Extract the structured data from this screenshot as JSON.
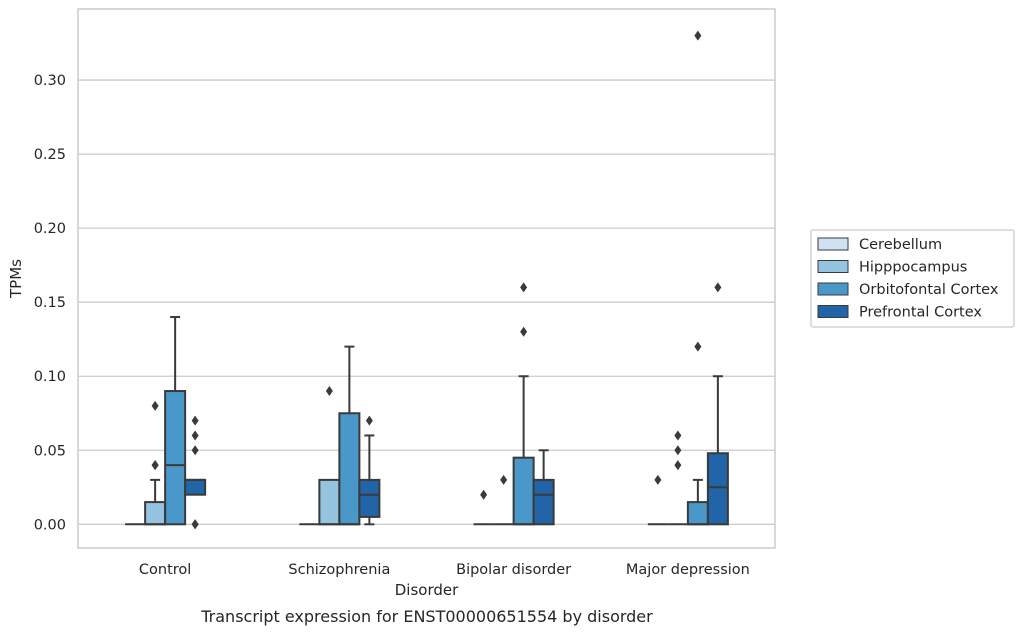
{
  "caption": "Transcript expression for ENST00000651554 by disorder",
  "chart_data": {
    "type": "box",
    "title": "",
    "xlabel": "Disorder",
    "ylabel": "TPMs",
    "ylim": [
      -0.016,
      0.348
    ],
    "yticks": [
      0.0,
      0.05,
      0.1,
      0.15,
      0.2,
      0.25,
      0.3
    ],
    "ytick_labels": [
      "0.00",
      "0.05",
      "0.10",
      "0.15",
      "0.20",
      "0.25",
      "0.30"
    ],
    "grid": true,
    "legend_position": "right",
    "categories": [
      "Control",
      "Schizophrenia",
      "Bipolar disorder",
      "Major depression"
    ],
    "series": [
      {
        "name": "Cerebellum",
        "color": "#d0e1f1",
        "boxes": [
          {
            "whislo": 0,
            "q1": 0,
            "med": 0,
            "q3": 0,
            "whishi": 0,
            "fliers": []
          },
          {
            "whislo": 0,
            "q1": 0,
            "med": 0,
            "q3": 0,
            "whishi": 0,
            "fliers": []
          },
          {
            "whislo": 0,
            "q1": 0,
            "med": 0,
            "q3": 0,
            "whishi": 0,
            "fliers": [
              0.02
            ]
          },
          {
            "whislo": 0,
            "q1": 0,
            "med": 0,
            "q3": 0,
            "whishi": 0,
            "fliers": [
              0.03
            ]
          }
        ]
      },
      {
        "name": "Hipppocampus",
        "color": "#94c4df",
        "boxes": [
          {
            "whislo": 0,
            "q1": 0,
            "med": 0,
            "q3": 0.015,
            "whishi": 0.03,
            "fliers": [
              0.04,
              0.04,
              0.08
            ]
          },
          {
            "whislo": 0,
            "q1": 0,
            "med": 0,
            "q3": 0.03,
            "whishi": 0.03,
            "fliers": [
              0.09
            ]
          },
          {
            "whislo": 0,
            "q1": 0,
            "med": 0,
            "q3": 0,
            "whishi": 0,
            "fliers": [
              0.03
            ]
          },
          {
            "whislo": 0,
            "q1": 0,
            "med": 0,
            "q3": 0,
            "whishi": 0,
            "fliers": [
              0.04,
              0.05,
              0.06
            ]
          }
        ]
      },
      {
        "name": "Orbitofontal Cortex",
        "color": "#4a98c9",
        "boxes": [
          {
            "whislo": 0,
            "q1": 0,
            "med": 0.04,
            "q3": 0.09,
            "whishi": 0.14,
            "fliers": []
          },
          {
            "whislo": 0,
            "q1": 0,
            "med": 0,
            "q3": 0.075,
            "whishi": 0.12,
            "fliers": []
          },
          {
            "whislo": 0,
            "q1": 0,
            "med": 0,
            "q3": 0.045,
            "whishi": 0.1,
            "fliers": [
              0.13,
              0.16
            ]
          },
          {
            "whislo": 0,
            "q1": 0,
            "med": 0,
            "q3": 0.015,
            "whishi": 0.03,
            "fliers": [
              0.12,
              0.33
            ]
          }
        ]
      },
      {
        "name": "Prefrontal Cortex",
        "color": "#2164a8",
        "boxes": [
          {
            "whislo": 0.02,
            "q1": 0.02,
            "med": 0.03,
            "q3": 0.03,
            "whishi": 0.03,
            "fliers": [
              0,
              0,
              0.05,
              0.06,
              0.07
            ]
          },
          {
            "whislo": 0,
            "q1": 0.005,
            "med": 0.02,
            "q3": 0.03,
            "whishi": 0.06,
            "fliers": [
              0.07
            ]
          },
          {
            "whislo": 0,
            "q1": 0,
            "med": 0.02,
            "q3": 0.03,
            "whishi": 0.05,
            "fliers": []
          },
          {
            "whislo": 0,
            "q1": 0,
            "med": 0.025,
            "q3": 0.048,
            "whishi": 0.1,
            "fliers": [
              0.16
            ]
          }
        ]
      }
    ]
  }
}
